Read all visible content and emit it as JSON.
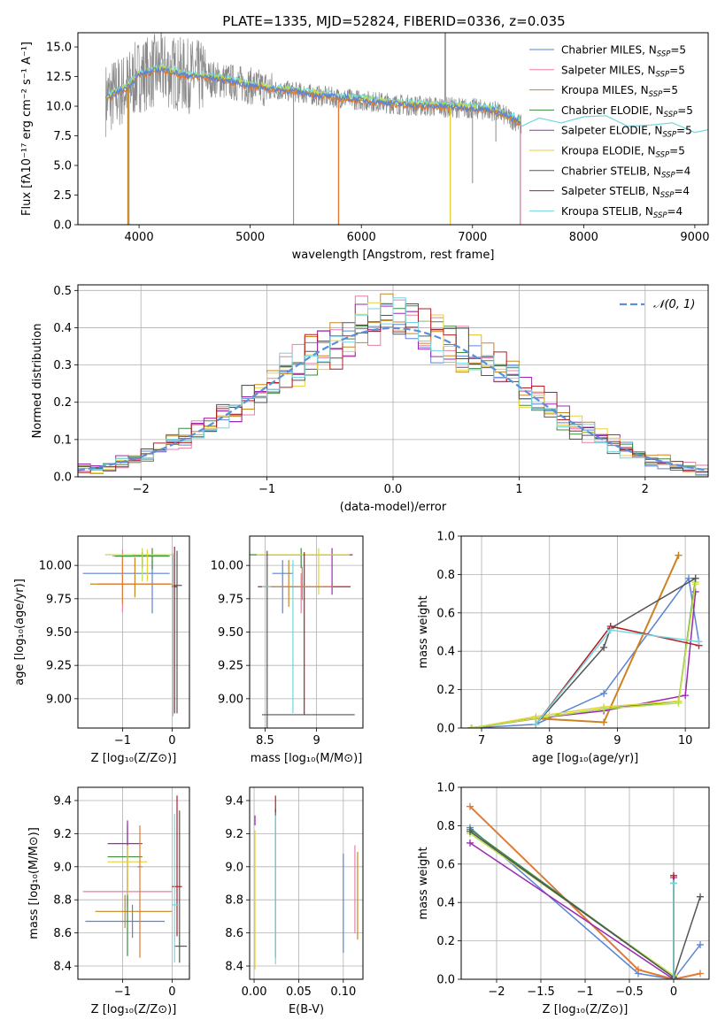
{
  "figure_title": "PLATE=1335, MJD=52824, FIBERID=0336, z=0.035",
  "colors": {
    "chabrier_miles": "#5b84d6",
    "salpeter_miles": "#e87fa8",
    "kroupa_miles": "#c8861f",
    "chabrier_elodie": "#3e8a3e",
    "salpeter_elodie": "#9a2bb0",
    "kroupa_elodie": "#e6d23a",
    "chabrier_stelib": "#555555",
    "salpeter_stelib": "#b01e24",
    "kroupa_stelib": "#74d6df",
    "orange": "#e07a34",
    "lime": "#b8e04a",
    "gray_data": "#8a8a8a",
    "normal_curve": "#5b8fd9"
  },
  "chart_data": [
    {
      "id": "spectrum",
      "type": "line",
      "xlabel": "wavelength [Angstrom, rest frame]",
      "ylabel": "Flux [fλ10⁻¹⁷ erg cm⁻² s⁻¹ A⁻¹]",
      "xlim": [
        3450,
        9120
      ],
      "ylim": [
        0,
        16.2
      ],
      "xticks": [
        4000,
        5000,
        6000,
        7000,
        8000,
        9000
      ],
      "yticks": [
        0.0,
        2.5,
        5.0,
        7.5,
        10.0,
        12.5,
        15.0
      ],
      "grid": false,
      "legend_position": "top-right",
      "legend": [
        {
          "label": "Chabrier MILES, N",
          "sub": "SSP",
          "suffix": "=5",
          "color": "chabrier_miles"
        },
        {
          "label": "Salpeter MILES, N",
          "sub": "SSP",
          "suffix": "=5",
          "color": "salpeter_miles"
        },
        {
          "label": "Kroupa MILES, N",
          "sub": "SSP",
          "suffix": "=5",
          "color": "kroupa_miles"
        },
        {
          "label": "Chabrier ELODIE, N",
          "sub": "SSP",
          "suffix": "=5",
          "color": "chabrier_elodie"
        },
        {
          "label": "Salpeter ELODIE, N",
          "sub": "SSP",
          "suffix": "=5",
          "color": "salpeter_elodie"
        },
        {
          "label": "Kroupa ELODIE, N",
          "sub": "SSP",
          "suffix": "=5",
          "color": "kroupa_elodie"
        },
        {
          "label": "Chabrier STELIB, N",
          "sub": "SSP",
          "suffix": "=4",
          "color": "chabrier_stelib"
        },
        {
          "label": "Salpeter STELIB, N",
          "sub": "SSP",
          "suffix": "=4",
          "color": "salpeter_stelib"
        },
        {
          "label": "Kroupa STELIB, N",
          "sub": "SSP",
          "suffix": "=4",
          "color": "kroupa_stelib"
        }
      ],
      "continuum": {
        "x": [
          3700,
          3900,
          4000,
          4200,
          4400,
          4600,
          4800,
          5000,
          5200,
          5400,
          5600,
          5800,
          6000,
          6200,
          6400,
          6600,
          6800,
          7000,
          7200,
          7400,
          7440
        ],
        "y": [
          10.6,
          11.6,
          12.6,
          13.1,
          12.6,
          12.4,
          12.1,
          11.7,
          11.4,
          11.2,
          10.9,
          10.7,
          10.5,
          10.3,
          10.1,
          10.0,
          9.9,
          9.8,
          9.6,
          8.7,
          8.4
        ]
      },
      "miles_model_extent": [
        3700,
        7440
      ],
      "model_extension": {
        "x": [
          7440,
          7600,
          7800,
          8000,
          8200,
          8400,
          8600,
          8800,
          9000,
          9120
        ],
        "y": [
          8.3,
          8.7,
          8.9,
          9.1,
          8.9,
          8.6,
          8.4,
          8.3,
          8.1,
          8.0
        ]
      }
    },
    {
      "id": "residuals",
      "type": "histogram",
      "xlabel": "(data-model)/error",
      "ylabel": "Normed distribution",
      "xlim": [
        -2.5,
        2.5
      ],
      "ylim": [
        0,
        0.515
      ],
      "xticks": [
        -2,
        -1,
        0,
        1,
        2
      ],
      "yticks": [
        0.0,
        0.1,
        0.2,
        0.3,
        0.4,
        0.5
      ],
      "grid": true,
      "legend_position": "top-right",
      "legend_label": "𝒩(0, 1)",
      "normal_mean": 0,
      "normal_sigma": 1,
      "bin_width": 0.1,
      "series_colors": [
        "chabrier_miles",
        "salpeter_miles",
        "kroupa_miles",
        "chabrier_elodie",
        "salpeter_elodie",
        "kroupa_elodie",
        "chabrier_stelib",
        "salpeter_stelib",
        "kroupa_stelib"
      ]
    },
    {
      "id": "age_vs_Z",
      "type": "errorbar",
      "xlabel": "Z [log₁₀(Z/Z⊙)]",
      "ylabel": "age  [log₁₀(age/yr)]",
      "xlim": [
        -1.9,
        0.35
      ],
      "ylim": [
        8.78,
        10.22
      ],
      "xticks": [
        -1,
        0
      ],
      "yticks": [
        9.0,
        9.25,
        9.5,
        9.75,
        10.0
      ],
      "grid": true,
      "points": [
        {
          "c": "chabrier_miles",
          "x": -0.4,
          "xe": [
            1.4,
            0.35
          ],
          "y": 9.94,
          "ye": [
            0.3,
            0.1
          ]
        },
        {
          "c": "salpeter_miles",
          "x": -1.0,
          "xe": [
            0.2,
            0.2
          ],
          "y": 10.07,
          "ye": [
            0.42,
            0.05
          ]
        },
        {
          "c": "kroupa_miles",
          "x": -0.75,
          "xe": [
            0.9,
            0.75
          ],
          "y": 9.86,
          "ye": [
            0.1,
            0.2
          ]
        },
        {
          "c": "chabrier_elodie",
          "x": -0.4,
          "xe": [
            0.75,
            0.35
          ],
          "y": 10.07,
          "ye": [
            0.1,
            0.06
          ]
        },
        {
          "c": "salpeter_elodie",
          "x": -0.6,
          "xe": [
            0.2,
            0.5
          ],
          "y": 10.08,
          "ye": [
            0.1,
            0.02
          ]
        },
        {
          "c": "kroupa_elodie",
          "x": -0.5,
          "xe": [
            0.1,
            0.4
          ],
          "y": 10.08,
          "ye": [
            0.2,
            0.04
          ]
        },
        {
          "c": "chabrier_stelib",
          "x": 0.1,
          "xe": [
            0.1,
            0.1
          ],
          "y": 9.85,
          "ye": [
            0.96,
            0.26
          ]
        },
        {
          "c": "salpeter_stelib",
          "x": 0.05,
          "xe": [
            0.05,
            0.05
          ],
          "y": 9.84,
          "ye": [
            0.95,
            0.3
          ]
        },
        {
          "c": "orange",
          "x": -1.0,
          "xe": [
            0.5,
            0.95
          ],
          "y": 9.86,
          "ye": [
            0.15,
            0.2
          ]
        },
        {
          "c": "kroupa_stelib",
          "x": 0.02,
          "xe": [
            0.02,
            0.02
          ],
          "y": 10.0,
          "ye": [
            1.13,
            0.09
          ]
        },
        {
          "c": "lime",
          "x": -0.6,
          "xe": [
            0.75,
            0.6
          ],
          "y": 10.08,
          "ye": [
            0.2,
            0.05
          ]
        }
      ]
    },
    {
      "id": "age_vs_mass",
      "type": "errorbar",
      "xlabel": "mass [log₁₀(M/M⊙)]",
      "ylabel": "",
      "xlim": [
        8.35,
        9.45
      ],
      "ylim": [
        8.78,
        10.22
      ],
      "xticks": [
        8.5,
        9.0
      ],
      "yticks": [
        9.0,
        9.25,
        9.5,
        9.75,
        10.0
      ],
      "grid": true,
      "points": [
        {
          "c": "chabrier_miles",
          "x": 8.67,
          "xe": [
            0.1,
            0.1
          ],
          "y": 9.94,
          "ye": [
            0.3,
            0.1
          ]
        },
        {
          "c": "salpeter_miles",
          "x": 8.85,
          "xe": [
            0.1,
            0.1
          ],
          "y": 9.84,
          "ye": [
            0.2,
            0.1
          ]
        },
        {
          "c": "kroupa_miles",
          "x": 8.73,
          "xe": [
            0.1,
            0.1
          ],
          "y": 9.84,
          "ye": [
            0.15,
            0.2
          ]
        },
        {
          "c": "chabrier_elodie",
          "x": 8.85,
          "xe": [
            0.5,
            0.5
          ],
          "y": 10.08,
          "ye": [
            0.1,
            0.05
          ]
        },
        {
          "c": "salpeter_elodie",
          "x": 9.15,
          "xe": [
            0.7,
            0.2
          ],
          "y": 10.08,
          "ye": [
            0.3,
            0.05
          ]
        },
        {
          "c": "kroupa_elodie",
          "x": 9.02,
          "xe": [
            0.6,
            0.3
          ],
          "y": 10.08,
          "ye": [
            0.3,
            0.05
          ]
        },
        {
          "c": "chabrier_stelib",
          "x": 8.52,
          "xe": [
            0.05,
            0.85
          ],
          "y": 8.88,
          "ye": [
            0.1,
            1.23
          ]
        },
        {
          "c": "salpeter_stelib",
          "x": 8.88,
          "xe": [
            0.45,
            0.45
          ],
          "y": 9.84,
          "ye": [
            0.96,
            0.26
          ]
        },
        {
          "c": "kroupa_stelib",
          "x": 8.77,
          "xe": [
            0.3,
            0.3
          ],
          "y": 9.84,
          "ye": [
            0.95,
            0.2
          ]
        },
        {
          "c": "orange",
          "x": 8.86,
          "xe": [
            0.3,
            0.3
          ],
          "y": 9.84,
          "ye": [
            0.1,
            0.15
          ]
        }
      ]
    },
    {
      "id": "massweight_vs_age",
      "type": "line",
      "xlabel": "age  [log₁₀(age/yr)]",
      "ylabel": "mass weight",
      "xlim": [
        6.7,
        10.35
      ],
      "ylim": [
        0,
        1.0
      ],
      "xticks": [
        7,
        8,
        9,
        10
      ],
      "yticks": [
        0.0,
        0.2,
        0.4,
        0.6,
        0.8,
        1.0
      ],
      "grid": true,
      "series": [
        {
          "c": "chabrier_miles",
          "x": [
            6.85,
            7.8,
            8.8,
            10.05,
            10.2
          ],
          "y": [
            0.0,
            0.02,
            0.18,
            0.78,
            0.45
          ]
        },
        {
          "c": "orange",
          "x": [
            6.85,
            7.8,
            8.8,
            9.9
          ],
          "y": [
            0.0,
            0.05,
            0.03,
            0.9
          ]
        },
        {
          "c": "kroupa_miles",
          "x": [
            6.85,
            7.8,
            8.8,
            9.9
          ],
          "y": [
            0.0,
            0.05,
            0.03,
            0.9
          ]
        },
        {
          "c": "chabrier_elodie",
          "x": [
            6.85,
            7.8,
            8.8,
            9.9,
            10.15
          ],
          "y": [
            0.0,
            0.05,
            0.1,
            0.14,
            0.78
          ]
        },
        {
          "c": "salpeter_elodie",
          "x": [
            6.85,
            7.8,
            8.8,
            10.0,
            10.15
          ],
          "y": [
            0.0,
            0.05,
            0.09,
            0.17,
            0.71
          ]
        },
        {
          "c": "kroupa_elodie",
          "x": [
            6.85,
            7.8,
            8.8,
            9.9,
            10.15
          ],
          "y": [
            0.0,
            0.06,
            0.11,
            0.14,
            0.75
          ]
        },
        {
          "c": "lime",
          "x": [
            6.85,
            7.8,
            8.8,
            9.9,
            10.15
          ],
          "y": [
            0.0,
            0.05,
            0.1,
            0.13,
            0.76
          ]
        },
        {
          "c": "chabrier_stelib",
          "x": [
            7.8,
            8.8,
            8.9,
            10.15
          ],
          "y": [
            0.02,
            0.42,
            0.52,
            0.78
          ]
        },
        {
          "c": "salpeter_stelib",
          "x": [
            7.8,
            8.9,
            10.2
          ],
          "y": [
            0.02,
            0.53,
            0.43
          ]
        },
        {
          "c": "kroupa_stelib",
          "x": [
            7.8,
            8.9,
            10.2
          ],
          "y": [
            0.02,
            0.51,
            0.45
          ]
        }
      ]
    },
    {
      "id": "mass_vs_Z",
      "type": "errorbar",
      "xlabel": "Z [log₁₀(Z/Z⊙)]",
      "ylabel": "mass [log₁₀(M/M⊙)]",
      "xlim": [
        -1.9,
        0.35
      ],
      "ylim": [
        8.32,
        9.48
      ],
      "xticks": [
        -1,
        0
      ],
      "yticks": [
        8.4,
        8.6,
        8.8,
        9.0,
        9.2,
        9.4
      ],
      "grid": true,
      "points": [
        {
          "c": "chabrier_miles",
          "x": -0.8,
          "xe": [
            0.95,
            0.65
          ],
          "y": 8.67,
          "ye": [
            0.1,
            0.1
          ]
        },
        {
          "c": "salpeter_miles",
          "x": -0.9,
          "xe": [
            0.9,
            0.9
          ],
          "y": 8.85,
          "ye": [
            0.1,
            0.1
          ]
        },
        {
          "c": "kroupa_miles",
          "x": -0.95,
          "xe": [
            0.6,
            0.95
          ],
          "y": 8.73,
          "ye": [
            0.1,
            0.1
          ]
        },
        {
          "c": "chabrier_elodie",
          "x": -0.9,
          "xe": [
            0.4,
            0.3
          ],
          "y": 9.06,
          "ye": [
            0.6,
            0.2
          ]
        },
        {
          "c": "salpeter_elodie",
          "x": -0.9,
          "xe": [
            0.4,
            0.3
          ],
          "y": 9.14,
          "ye": [
            0.3,
            0.14
          ]
        },
        {
          "c": "kroupa_elodie",
          "x": -0.9,
          "xe": [
            0.4,
            0.4
          ],
          "y": 9.03,
          "ye": [
            0.2,
            0.1
          ]
        },
        {
          "c": "chabrier_stelib",
          "x": 0.15,
          "xe": [
            0.1,
            0.15
          ],
          "y": 8.52,
          "ye": [
            0.1,
            0.82
          ]
        },
        {
          "c": "salpeter_stelib",
          "x": 0.1,
          "xe": [
            0.1,
            0.1
          ],
          "y": 8.88,
          "ye": [
            0.3,
            0.55
          ]
        },
        {
          "c": "kroupa_stelib",
          "x": 0.05,
          "xe": [
            0.05,
            0.1
          ],
          "y": 8.77,
          "ye": [
            0.35,
            0.55
          ]
        },
        {
          "c": "orange",
          "x": -0.65,
          "xe": [
            0.05,
            0.05
          ],
          "y": 9.0,
          "ye": [
            0.55,
            0.25
          ]
        }
      ]
    },
    {
      "id": "mass_vs_ebv",
      "type": "errorbar",
      "xlabel": "E(B-V)",
      "ylabel": "",
      "xlim": [
        -0.005,
        0.122
      ],
      "ylim": [
        8.32,
        9.48
      ],
      "xticks": [
        0.0,
        0.05,
        0.1
      ],
      "xticklabels": [
        "0.00",
        "0.05",
        "0.10"
      ],
      "yticks": [
        8.4,
        8.6,
        8.8,
        9.0,
        9.2,
        9.4
      ],
      "grid": true,
      "points": [
        {
          "c": "chabrier_miles",
          "x": 0.1,
          "y": 8.78,
          "ye": [
            0.3,
            0.3
          ]
        },
        {
          "c": "salpeter_miles",
          "x": 0.113,
          "y": 8.85,
          "ye": [
            0.25,
            0.28
          ]
        },
        {
          "c": "kroupa_miles",
          "x": 0.116,
          "y": 8.83,
          "ye": [
            0.27,
            0.26
          ]
        },
        {
          "c": "salpeter_elodie",
          "x": 0.001,
          "y": 9.28,
          "ye": [
            0.03,
            0.03
          ]
        },
        {
          "c": "kroupa_elodie",
          "x": 0.001,
          "y": 8.8,
          "ye": [
            0.42,
            0.42
          ]
        },
        {
          "c": "chabrier_stelib",
          "x": 0.024,
          "y": 8.9,
          "ye": [
            0.45,
            0.45
          ]
        },
        {
          "c": "salpeter_stelib",
          "x": 0.024,
          "y": 9.38,
          "ye": [
            0.05,
            0.05
          ]
        },
        {
          "c": "kroupa_stelib",
          "x": 0.024,
          "y": 8.86,
          "ye": [
            0.45,
            0.45
          ]
        }
      ]
    },
    {
      "id": "massweight_vs_Z",
      "type": "line",
      "xlabel": "Z [log₁₀(Z/Z⊙)]",
      "ylabel": "mass weight",
      "xlim": [
        -2.4,
        0.4
      ],
      "ylim": [
        0,
        1.0
      ],
      "xticks": [
        -2.0,
        -1.5,
        -1.0,
        -0.5,
        0.0
      ],
      "yticks": [
        0.0,
        0.2,
        0.4,
        0.6,
        0.8,
        1.0
      ],
      "grid": true,
      "series": [
        {
          "c": "chabrier_miles",
          "x": [
            -2.3,
            -0.4,
            0.0,
            0.3
          ],
          "y": [
            0.79,
            0.03,
            0.0,
            0.18
          ]
        },
        {
          "c": "orange",
          "x": [
            -2.3,
            -0.4,
            0.0,
            0.3
          ],
          "y": [
            0.9,
            0.05,
            0.0,
            0.03
          ]
        },
        {
          "c": "salpeter_elodie",
          "x": [
            -2.3,
            0.0,
            0.0
          ],
          "y": [
            0.71,
            0.0,
            0.53
          ]
        },
        {
          "c": "lime",
          "x": [
            -2.3,
            0.0,
            0.0
          ],
          "y": [
            0.76,
            0.02,
            0.5
          ]
        },
        {
          "c": "chabrier_elodie",
          "x": [
            -2.3,
            0.0,
            0.0
          ],
          "y": [
            0.78,
            0.01,
            0.5
          ]
        },
        {
          "c": "chabrier_stelib",
          "x": [
            -2.3,
            0.0,
            0.3
          ],
          "y": [
            0.77,
            0.01,
            0.43
          ]
        },
        {
          "c": "salpeter_stelib",
          "x": [
            0.0,
            0.0
          ],
          "y": [
            0.0,
            0.54
          ]
        },
        {
          "c": "kroupa_stelib",
          "x": [
            0.0,
            0.0
          ],
          "y": [
            0.0,
            0.5
          ]
        }
      ]
    }
  ]
}
